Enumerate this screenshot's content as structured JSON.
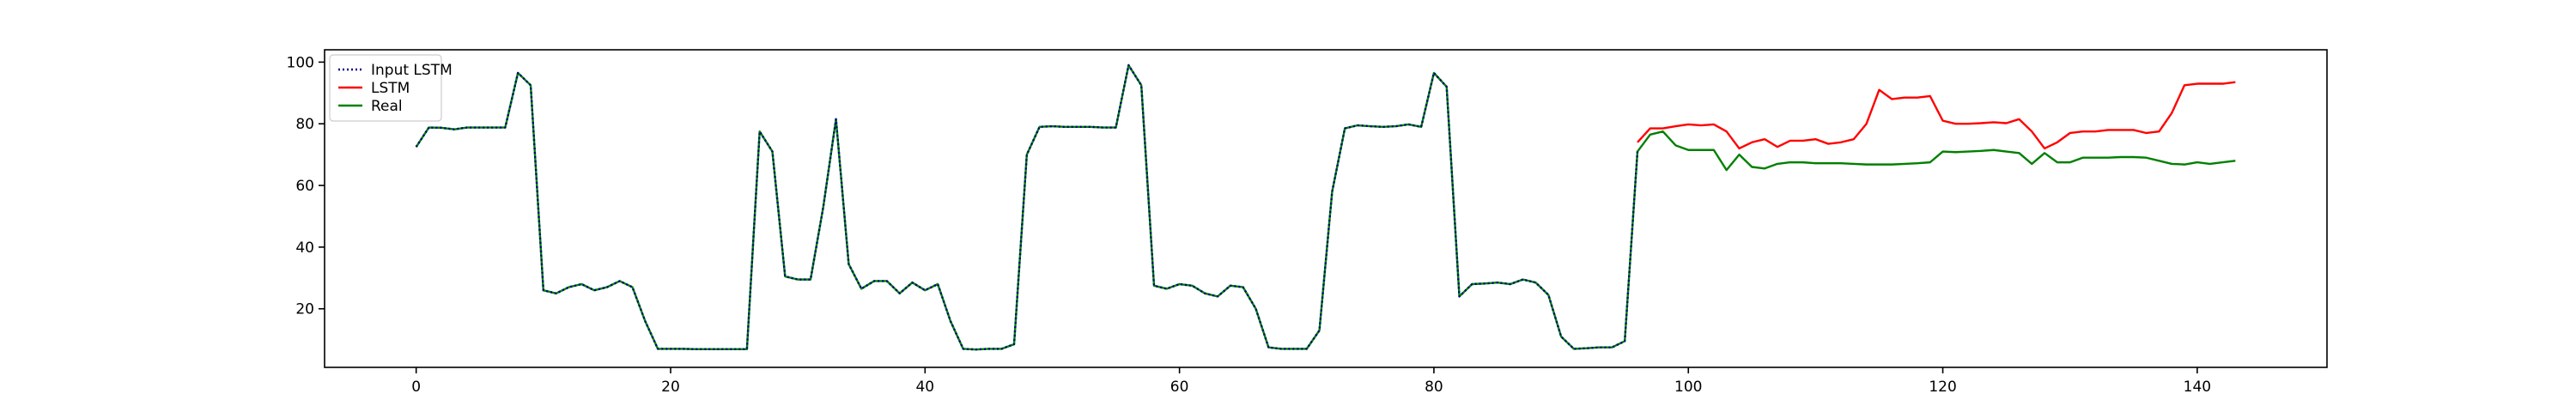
{
  "chart_data": {
    "type": "line",
    "title": "",
    "xlabel": "",
    "ylabel": "",
    "xlim": [
      -7.2,
      150.2
    ],
    "ylim": [
      1,
      104
    ],
    "x_ticks": [
      0,
      20,
      40,
      60,
      80,
      100,
      120,
      140
    ],
    "y_ticks": [
      20,
      40,
      60,
      80,
      100
    ],
    "legend_position": "top-left",
    "grid": false,
    "series": [
      {
        "name": "Input LSTM",
        "color": "#00008b",
        "style": "dotted",
        "x": [
          0,
          1,
          2,
          3,
          4,
          5,
          6,
          7,
          8,
          9,
          10,
          11,
          12,
          13,
          14,
          15,
          16,
          17,
          18,
          19,
          20,
          21,
          22,
          23,
          24,
          25,
          26,
          27,
          28,
          29,
          30,
          31,
          32,
          33,
          34,
          35,
          36,
          37,
          38,
          39,
          40,
          41,
          42,
          43,
          44,
          45,
          46,
          47,
          48,
          49,
          50,
          51,
          52,
          53,
          54,
          55,
          56,
          57,
          58,
          59,
          60,
          61,
          62,
          63,
          64,
          65,
          66,
          67,
          68,
          69,
          70,
          71,
          72,
          73,
          74,
          75,
          76,
          77,
          78,
          79,
          80,
          81,
          82,
          83,
          84,
          85,
          86,
          87,
          88,
          89,
          90,
          91,
          92,
          93,
          94,
          95,
          96
        ],
        "y": [
          72.5,
          78.8,
          78.7,
          78.2,
          78.8,
          78.8,
          78.8,
          78.8,
          96.5,
          92.5,
          26,
          25,
          27,
          28,
          26,
          27,
          29,
          27,
          16,
          7,
          7,
          7,
          6.9,
          6.9,
          6.9,
          6.9,
          6.9,
          77.5,
          71,
          30.5,
          29.5,
          29.5,
          53,
          81.5,
          34.5,
          26.5,
          29,
          29,
          25,
          28.5,
          26,
          28,
          16,
          7,
          6.8,
          7,
          7,
          8.5,
          70,
          79,
          79.2,
          79,
          79,
          79,
          78.8,
          78.8,
          99,
          92.5,
          27.5,
          26.5,
          28,
          27.5,
          25,
          24,
          27.5,
          27,
          20,
          7.5,
          7,
          7,
          7,
          13,
          58,
          78.5,
          79.5,
          79.2,
          79,
          79.2,
          79.8,
          79,
          96.5,
          92,
          24,
          28,
          28.2,
          28.5,
          28,
          29.5,
          28.5,
          24.5,
          11,
          7,
          7.2,
          7.5,
          7.5,
          9.5,
          71
        ]
      },
      {
        "name": "LSTM",
        "color": "#ff0000",
        "style": "solid",
        "x": [
          96,
          97,
          98,
          99,
          100,
          101,
          102,
          103,
          104,
          105,
          106,
          107,
          108,
          109,
          110,
          111,
          112,
          113,
          114,
          115,
          116,
          117,
          118,
          119,
          120,
          121,
          122,
          123,
          124,
          125,
          126,
          127,
          128,
          129,
          130,
          131,
          132,
          133,
          134,
          135,
          136,
          137,
          138,
          139,
          140,
          141,
          142,
          143
        ],
        "y": [
          74,
          78.5,
          78.5,
          79.2,
          79.8,
          79.5,
          79.8,
          77.5,
          72,
          74,
          75,
          72.5,
          74.5,
          74.5,
          75,
          73.5,
          74,
          75,
          80,
          91,
          88,
          88.5,
          88.5,
          89,
          81,
          80,
          80,
          80.2,
          80.5,
          80.2,
          81.5,
          77.5,
          72,
          74,
          77,
          77.5,
          77.5,
          78,
          78,
          78,
          77,
          77.5,
          83.5,
          92.5,
          93,
          93,
          93,
          93.5
        ]
      },
      {
        "name": "Real",
        "color": "#008000",
        "style": "solid",
        "x": [
          0,
          1,
          2,
          3,
          4,
          5,
          6,
          7,
          8,
          9,
          10,
          11,
          12,
          13,
          14,
          15,
          16,
          17,
          18,
          19,
          20,
          21,
          22,
          23,
          24,
          25,
          26,
          27,
          28,
          29,
          30,
          31,
          32,
          33,
          34,
          35,
          36,
          37,
          38,
          39,
          40,
          41,
          42,
          43,
          44,
          45,
          46,
          47,
          48,
          49,
          50,
          51,
          52,
          53,
          54,
          55,
          56,
          57,
          58,
          59,
          60,
          61,
          62,
          63,
          64,
          65,
          66,
          67,
          68,
          69,
          70,
          71,
          72,
          73,
          74,
          75,
          76,
          77,
          78,
          79,
          80,
          81,
          82,
          83,
          84,
          85,
          86,
          87,
          88,
          89,
          90,
          91,
          92,
          93,
          94,
          95,
          96,
          97,
          98,
          99,
          100,
          101,
          102,
          103,
          104,
          105,
          106,
          107,
          108,
          109,
          110,
          111,
          112,
          113,
          114,
          115,
          116,
          117,
          118,
          119,
          120,
          121,
          122,
          123,
          124,
          125,
          126,
          127,
          128,
          129,
          130,
          131,
          132,
          133,
          134,
          135,
          136,
          137,
          138,
          139,
          140,
          141,
          142,
          143
        ],
        "y": [
          72.5,
          78.8,
          78.7,
          78.2,
          78.8,
          78.8,
          78.8,
          78.8,
          96.5,
          92.5,
          26,
          25,
          27,
          28,
          26,
          27,
          29,
          27,
          16,
          7,
          7,
          7,
          6.9,
          6.9,
          6.9,
          6.9,
          6.9,
          77.5,
          71,
          30.5,
          29.5,
          29.5,
          53,
          81.5,
          34.5,
          26.5,
          29,
          29,
          25,
          28.5,
          26,
          28,
          16,
          7,
          6.8,
          7,
          7,
          8.5,
          70,
          79,
          79.2,
          79,
          79,
          79,
          78.8,
          78.8,
          99,
          92.5,
          27.5,
          26.5,
          28,
          27.5,
          25,
          24,
          27.5,
          27,
          20,
          7.5,
          7,
          7,
          7,
          13,
          58,
          78.5,
          79.5,
          79.2,
          79,
          79.2,
          79.8,
          79,
          96.5,
          92,
          24,
          28,
          28.2,
          28.5,
          28,
          29.5,
          28.5,
          24.5,
          11,
          7,
          7.2,
          7.5,
          7.5,
          9.5,
          71,
          76.5,
          77.5,
          73,
          71.5,
          71.5,
          71.5,
          65,
          70,
          66,
          65.5,
          67,
          67.5,
          67.5,
          67.2,
          67.2,
          67.2,
          67,
          66.8,
          66.8,
          66.8,
          67,
          67.2,
          67.5,
          71,
          70.8,
          71,
          71.2,
          71.5,
          71,
          70.5,
          67,
          70.5,
          67.5,
          67.5,
          69,
          69,
          69,
          69.2,
          69.2,
          69,
          68,
          67,
          66.8,
          67.5,
          67,
          67.5,
          68
        ]
      }
    ]
  }
}
